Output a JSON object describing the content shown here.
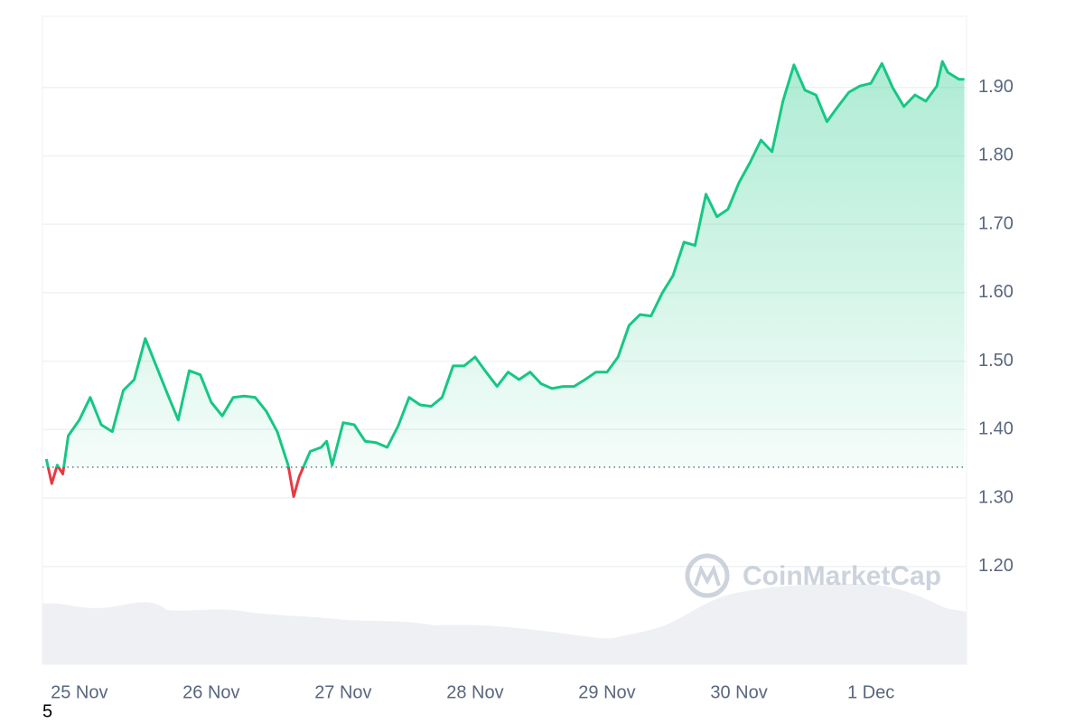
{
  "chart_data": {
    "type": "line",
    "x": [
      -6,
      -5,
      -4,
      -3,
      -2,
      0,
      2,
      4,
      6,
      8,
      10,
      12,
      14,
      16,
      18,
      20,
      22,
      24,
      26,
      28,
      30,
      32,
      34,
      36,
      38,
      39,
      40,
      42,
      44,
      45,
      46,
      48,
      50,
      52,
      54,
      56,
      58,
      60,
      62,
      64,
      66,
      68,
      70,
      72,
      74,
      76,
      78,
      80,
      82,
      84,
      86,
      88,
      90,
      92,
      94,
      96,
      98,
      100,
      102,
      104,
      106,
      108,
      110,
      112,
      114,
      116,
      118,
      120,
      122,
      124,
      126,
      128,
      130,
      132,
      134,
      136,
      138,
      140,
      142,
      144,
      146,
      148,
      150,
      152,
      154,
      156,
      157,
      158,
      160,
      161
    ],
    "series": [
      {
        "color": "#16c784",
        "values": [
          1.357,
          1.321,
          1.348,
          1.335,
          1.391,
          1.414,
          1.447,
          1.407,
          1.397,
          1.457,
          1.473,
          1.533,
          1.493,
          1.453,
          1.414,
          1.486,
          1.48,
          1.44,
          1.42,
          1.447,
          1.449,
          1.447,
          1.427,
          1.397,
          1.348,
          1.302,
          1.331,
          1.368,
          1.374,
          1.383,
          1.348,
          1.41,
          1.407,
          1.383,
          1.381,
          1.374,
          1.405,
          1.447,
          1.436,
          1.434,
          1.447,
          1.493,
          1.493,
          1.506,
          1.484,
          1.463,
          1.484,
          1.473,
          1.484,
          1.467,
          1.46,
          1.463,
          1.463,
          1.473,
          1.484,
          1.484,
          1.506,
          1.552,
          1.568,
          1.566,
          1.599,
          1.625,
          1.674,
          1.669,
          1.744,
          1.711,
          1.722,
          1.761,
          1.79,
          1.823,
          1.806,
          1.88,
          1.933,
          1.896,
          1.889,
          1.85,
          1.872,
          1.893,
          1.902,
          1.906,
          1.935,
          1.899,
          1.872,
          1.889,
          1.88,
          1.902,
          1.938,
          1.922,
          1.912,
          1.912
        ]
      }
    ],
    "baseline": 1.345,
    "below_color": "#ea3943",
    "xlim": [
      -6.7,
      161.4
    ],
    "xticks": [
      {
        "value": 0,
        "label": "25 Nov"
      },
      {
        "value": 24,
        "label": "26 Nov"
      },
      {
        "value": 48,
        "label": "27 Nov"
      },
      {
        "value": 72,
        "label": "28 Nov"
      },
      {
        "value": 96,
        "label": "29 Nov"
      },
      {
        "value": 120,
        "label": "30 Nov"
      },
      {
        "value": 144,
        "label": "1 Dec"
      }
    ],
    "ylim": [
      1.057,
      2.004
    ],
    "yticks": [
      {
        "value": 1.2,
        "label": "1.20"
      },
      {
        "value": 1.3,
        "label": "1.30"
      },
      {
        "value": 1.4,
        "label": "1.40"
      },
      {
        "value": 1.5,
        "label": "1.50"
      },
      {
        "value": 1.6,
        "label": "1.60"
      },
      {
        "value": 1.7,
        "label": "1.70"
      },
      {
        "value": 1.8,
        "label": "1.80"
      },
      {
        "value": 1.9,
        "label": "1.90"
      }
    ],
    "grid": true,
    "watermark": "CoinMarketCap"
  },
  "caption": "5"
}
